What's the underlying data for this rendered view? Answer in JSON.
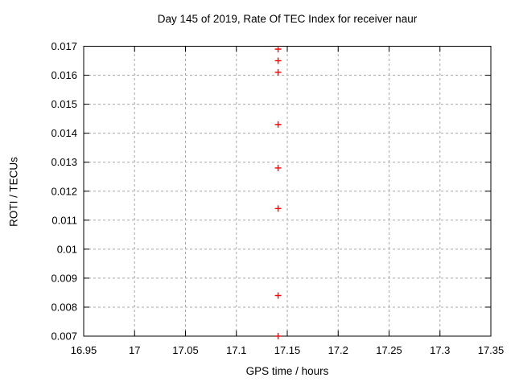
{
  "chart_data": {
    "type": "scatter",
    "title": "Day 145 of 2019, Rate Of TEC Index for receiver naur",
    "xlabel": "GPS time / hours",
    "ylabel": "ROTI / TECUs",
    "xlim": [
      16.95,
      17.35
    ],
    "ylim": [
      0.007,
      0.017
    ],
    "x_tick_values": [
      16.95,
      17.0,
      17.05,
      17.1,
      17.15,
      17.2,
      17.25,
      17.3,
      17.35
    ],
    "x_tick_labels": [
      "16.95",
      "17",
      "17.05",
      "17.1",
      "17.15",
      "17.2",
      "17.25",
      "17.3",
      "17.35"
    ],
    "y_tick_values": [
      0.007,
      0.008,
      0.009,
      0.01,
      0.011,
      0.012,
      0.013,
      0.014,
      0.015,
      0.016,
      0.017
    ],
    "y_tick_labels": [
      "0.007",
      "0.008",
      "0.009",
      "0.01",
      "0.011",
      "0.012",
      "0.013",
      "0.014",
      "0.015",
      "0.016",
      "0.017"
    ],
    "grid": true,
    "legend": "none",
    "marker": "plus",
    "colors": {
      "marker": "#ff0000",
      "grid": "#a8a8a8",
      "border": "#000000",
      "text": "#000000"
    },
    "series": [
      {
        "name": "ROTI",
        "x": [
          17.141,
          17.141,
          17.141,
          17.141,
          17.141,
          17.141,
          17.141,
          17.141
        ],
        "y": [
          0.0169,
          0.0165,
          0.0161,
          0.0143,
          0.0128,
          0.0114,
          0.0084,
          0.007
        ]
      }
    ]
  }
}
